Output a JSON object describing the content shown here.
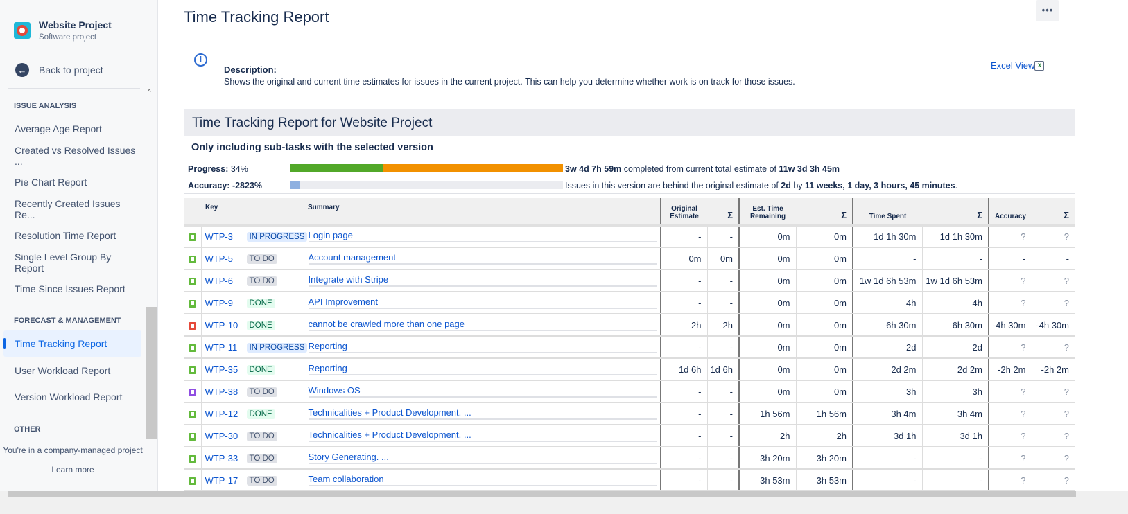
{
  "sidebar": {
    "project_name": "Website Project",
    "project_type": "Software project",
    "back_label": "Back to project",
    "sections": [
      {
        "title": "ISSUE ANALYSIS",
        "items": [
          "Average Age Report",
          "Created vs Resolved Issues ...",
          "Pie Chart Report",
          "Recently Created Issues Re...",
          "Resolution Time Report",
          "Single Level Group By Report",
          "Time Since Issues Report"
        ]
      },
      {
        "title": "FORECAST & MANAGEMENT",
        "items": [
          "Time Tracking Report",
          "User Workload Report",
          "Version Workload Report"
        ]
      },
      {
        "title": "OTHER"
      }
    ],
    "active_item": "Time Tracking Report",
    "other_text": "You're in a company-managed project",
    "learn_more": "Learn more"
  },
  "header": {
    "title": "Time Tracking Report",
    "more_label": "•••"
  },
  "description": {
    "label": "Description:",
    "text": "Shows the original and current time estimates for issues in the current project. This can help you determine whether work is on track for those issues.",
    "excel_label": "Excel View",
    "excel_icon": "x"
  },
  "report": {
    "title": "Time Tracking Report for Website Project",
    "subtitle": "Only including sub-tasks with the selected version",
    "progress_label": "Progress:",
    "progress_value": "34%",
    "progress_completed_fraction": 0.34,
    "progress_text": {
      "a": "3w 4d 7h 59m",
      "b": " completed from current total estimate of ",
      "c": "11w 3d 3h 45m"
    },
    "accuracy_label": "Accuracy:",
    "accuracy_value": "-2823%",
    "accuracy_text": {
      "a": "Issues in this version are behind the original estimate of ",
      "b": "2d",
      "c": " by ",
      "d": "11 weeks, 1 day, 3 hours, 45 minutes",
      "e": "."
    },
    "colors": {
      "completed": "#52a829",
      "remaining": "#f29100",
      "accuracy": "#8eb0e0"
    }
  },
  "table": {
    "headers": {
      "key": "Key",
      "summary": "Summary",
      "orig": "Original Estimate",
      "est": "Est. Time Remaining",
      "spent": "Time Spent",
      "acc": "Accuracy",
      "sigma": "Σ"
    },
    "status_colors": {
      "IN PROGRESS": [
        "#deebff",
        "#0747a6"
      ],
      "TO DO": [
        "#dfe1e6",
        "#42526e"
      ],
      "DONE": [
        "#e3fcef",
        "#006644"
      ]
    },
    "type_colors": {
      "story": "#63ba3c",
      "bug": "#e5493a",
      "epic": "#904ee2"
    },
    "rows": [
      {
        "type": "story",
        "key": "WTP-3",
        "status": "IN PROGRESS",
        "summary": "Login page",
        "v": [
          "-",
          "-",
          "0m",
          "0m",
          "1d 1h 30m",
          "1d 1h 30m",
          "?",
          "?"
        ]
      },
      {
        "type": "story",
        "key": "WTP-5",
        "status": "TO DO",
        "summary": "Account management",
        "v": [
          "0m",
          "0m",
          "0m",
          "0m",
          "-",
          "-",
          "-",
          "-"
        ]
      },
      {
        "type": "story",
        "key": "WTP-6",
        "status": "TO DO",
        "summary": "Integrate with Stripe",
        "v": [
          "-",
          "-",
          "0m",
          "0m",
          "1w 1d 6h 53m",
          "1w 1d 6h 53m",
          "?",
          "?"
        ]
      },
      {
        "type": "story",
        "key": "WTP-9",
        "status": "DONE",
        "summary": "API Improvement",
        "v": [
          "-",
          "-",
          "0m",
          "0m",
          "4h",
          "4h",
          "?",
          "?"
        ]
      },
      {
        "type": "bug",
        "key": "WTP-10",
        "status": "DONE",
        "summary": "cannot be crawled more than one page",
        "v": [
          "2h",
          "2h",
          "0m",
          "0m",
          "6h 30m",
          "6h 30m",
          "-4h 30m",
          "-4h 30m"
        ]
      },
      {
        "type": "story",
        "key": "WTP-11",
        "status": "IN PROGRESS",
        "summary": "Reporting",
        "v": [
          "-",
          "-",
          "0m",
          "0m",
          "2d",
          "2d",
          "?",
          "?"
        ]
      },
      {
        "type": "story",
        "key": "WTP-35",
        "status": "DONE",
        "summary": "Reporting",
        "v": [
          "1d 6h",
          "1d 6h",
          "0m",
          "0m",
          "2d 2m",
          "2d 2m",
          "-2h 2m",
          "-2h 2m"
        ]
      },
      {
        "type": "epic",
        "key": "WTP-38",
        "status": "TO DO",
        "summary": "Windows OS",
        "v": [
          "-",
          "-",
          "0m",
          "0m",
          "3h",
          "3h",
          "?",
          "?"
        ]
      },
      {
        "type": "story",
        "key": "WTP-12",
        "status": "DONE",
        "summary": "Technicalities + Product Development. ...",
        "v": [
          "-",
          "-",
          "1h 56m",
          "1h 56m",
          "3h 4m",
          "3h 4m",
          "?",
          "?"
        ]
      },
      {
        "type": "story",
        "key": "WTP-30",
        "status": "TO DO",
        "summary": "Technicalities + Product Development. ...",
        "v": [
          "-",
          "-",
          "2h",
          "2h",
          "3d 1h",
          "3d 1h",
          "?",
          "?"
        ]
      },
      {
        "type": "story",
        "key": "WTP-33",
        "status": "TO DO",
        "summary": "Story Generating. ...",
        "v": [
          "-",
          "-",
          "3h 20m",
          "3h 20m",
          "-",
          "-",
          "?",
          "?"
        ]
      },
      {
        "type": "story",
        "key": "WTP-17",
        "status": "TO DO",
        "summary": "Team collaboration",
        "v": [
          "-",
          "-",
          "3h 53m",
          "3h 53m",
          "-",
          "-",
          "?",
          "?"
        ]
      }
    ]
  }
}
